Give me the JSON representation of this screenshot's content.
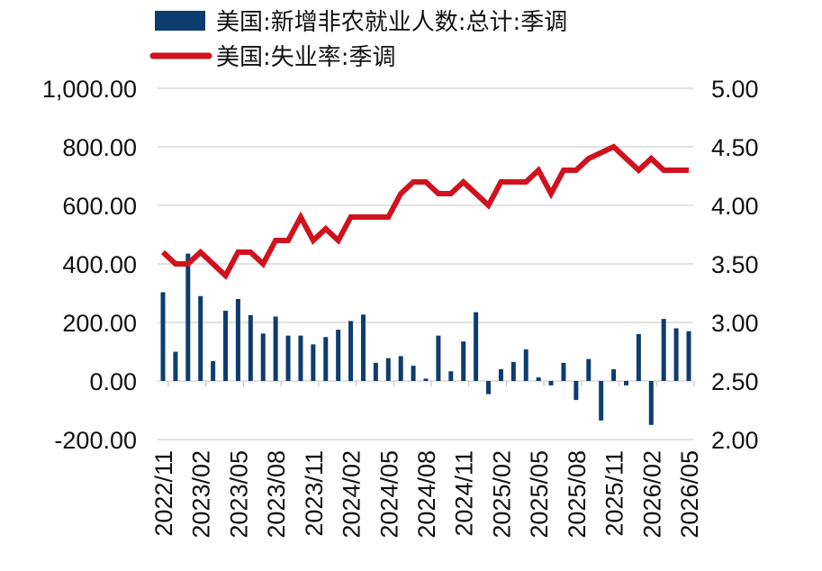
{
  "chart_data": {
    "type": "bar+line",
    "legend": [
      {
        "label": "美国:新增非农就业人数:总计:季调",
        "type": "bar",
        "color": "#0d3d6e"
      },
      {
        "label": "美国:失业率:季调",
        "type": "line",
        "color": "#d0121e"
      }
    ],
    "legend_placement": "top-left",
    "grid": true,
    "left_axis": {
      "ylim": [
        -200,
        1000
      ],
      "ticks": [
        "1,000.00",
        "800.00",
        "600.00",
        "400.00",
        "200.00",
        "0.00",
        "-200.00"
      ],
      "tick_values": [
        1000,
        800,
        600,
        400,
        200,
        0,
        -200
      ]
    },
    "right_axis": {
      "ylim": [
        2.0,
        5.0
      ],
      "ticks": [
        "5.00",
        "4.50",
        "4.00",
        "3.50",
        "3.00",
        "2.50",
        "2.00"
      ],
      "tick_values": [
        5.0,
        4.5,
        4.0,
        3.5,
        3.0,
        2.5,
        2.0
      ]
    },
    "x_tick_labels": [
      "2022/11",
      "2023/02",
      "2023/05",
      "2023/08",
      "2023/11",
      "2024/02",
      "2024/05",
      "2024/08",
      "2024/11",
      "2025/02",
      "2025/05",
      "2025/08",
      "2025/11",
      "2026/02",
      "2026/05"
    ],
    "categories": [
      "2022/11",
      "2022/12",
      "2023/01",
      "2023/02",
      "2023/03",
      "2023/04",
      "2023/05",
      "2023/06",
      "2023/07",
      "2023/08",
      "2023/09",
      "2023/10",
      "2023/11",
      "2023/12",
      "2024/01",
      "2024/02",
      "2024/03",
      "2024/04",
      "2024/05",
      "2024/06",
      "2024/07",
      "2024/08",
      "2024/09",
      "2024/10",
      "2024/11",
      "2024/12",
      "2025/01",
      "2025/02",
      "2025/03",
      "2025/04",
      "2025/05",
      "2025/06",
      "2025/07",
      "2025/08",
      "2025/09",
      "2025/10",
      "2025/11",
      "2025/12",
      "2026/01",
      "2026/02",
      "2026/03",
      "2026/04",
      "2026/05"
    ],
    "series": [
      {
        "name": "美国:新增非农就业人数:总计:季调",
        "axis": "left",
        "values": [
          303,
          100,
          435,
          290,
          68,
          240,
          280,
          225,
          162,
          220,
          155,
          155,
          125,
          150,
          175,
          205,
          227,
          62,
          78,
          85,
          52,
          8,
          155,
          33,
          135,
          235,
          -45,
          40,
          65,
          108,
          12,
          -15,
          62,
          -65,
          75,
          -135,
          40,
          -15,
          160,
          -150,
          212,
          180,
          170
        ]
      },
      {
        "name": "美国:失业率:季调",
        "axis": "right",
        "values": [
          3.6,
          3.5,
          3.5,
          3.6,
          3.5,
          3.4,
          3.6,
          3.6,
          3.5,
          3.7,
          3.7,
          3.9,
          3.7,
          3.8,
          3.7,
          3.9,
          3.9,
          3.9,
          3.9,
          4.1,
          4.2,
          4.2,
          4.1,
          4.1,
          4.2,
          4.1,
          4.0,
          4.2,
          4.2,
          4.2,
          4.3,
          4.1,
          4.3,
          4.3,
          4.4,
          4.45,
          4.5,
          4.4,
          4.3,
          4.4,
          4.3,
          4.3,
          4.3
        ]
      }
    ]
  }
}
